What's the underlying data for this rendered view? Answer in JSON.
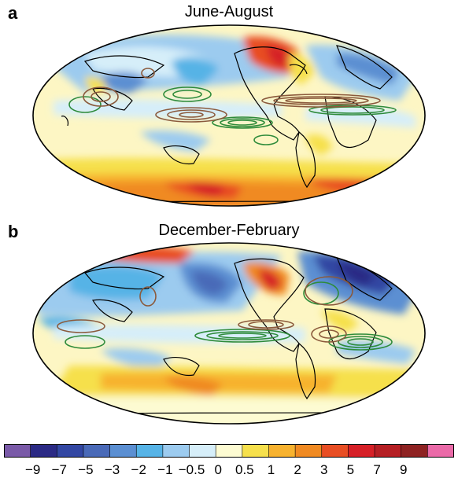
{
  "panels": [
    {
      "letter": "a",
      "title": "June-August"
    },
    {
      "letter": "b",
      "title": "December-February"
    }
  ],
  "colorbar": {
    "colors": [
      "#7a5aa8",
      "#2b2a85",
      "#3347a3",
      "#4a6ab8",
      "#5b8fd2",
      "#56b3e6",
      "#9ccbef",
      "#d6eef9",
      "#fdfbd2",
      "#f6e04c",
      "#f7b22f",
      "#f08a22",
      "#e84e24",
      "#d62027",
      "#b51f24",
      "#8e2222",
      "#ea6aa8"
    ],
    "ticks": [
      "−9",
      "−7",
      "−5",
      "−3",
      "−2",
      "−1",
      "−0.5",
      "0",
      "0.5",
      "1",
      "2",
      "3",
      "5",
      "7",
      "9"
    ]
  }
}
